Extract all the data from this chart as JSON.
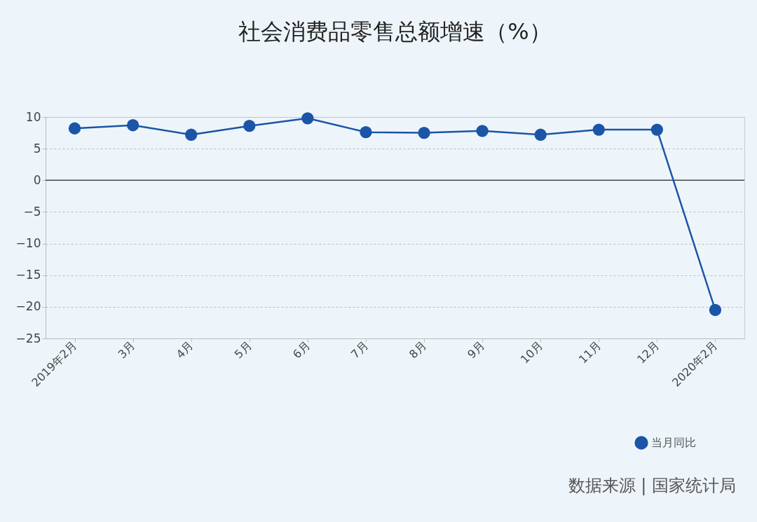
{
  "chart_data": {
    "type": "line",
    "title": "社会消费品零售总额增速（%）",
    "categories": [
      "2019年2月",
      "3月",
      "4月",
      "5月",
      "6月",
      "7月",
      "8月",
      "9月",
      "10月",
      "11月",
      "12月",
      "2020年2月"
    ],
    "series": [
      {
        "name": "当月同比",
        "color": "#1a55a8",
        "values": [
          8.2,
          8.7,
          7.2,
          8.6,
          9.8,
          7.6,
          7.5,
          7.8,
          7.2,
          8.0,
          8.0,
          -20.5
        ]
      }
    ],
    "ylim": [
      -25,
      10
    ],
    "yticks": [
      10,
      5,
      0,
      -5,
      -10,
      -15,
      -20,
      -25
    ],
    "grid": "y",
    "legend": "bottom right",
    "marker": "circle",
    "line_style": "solid",
    "ref_lines": [
      {
        "axis": "y",
        "value": 0,
        "label": null,
        "color": "#444444"
      }
    ],
    "annotations": [
      "数据来源  |  国家统计局"
    ]
  }
}
